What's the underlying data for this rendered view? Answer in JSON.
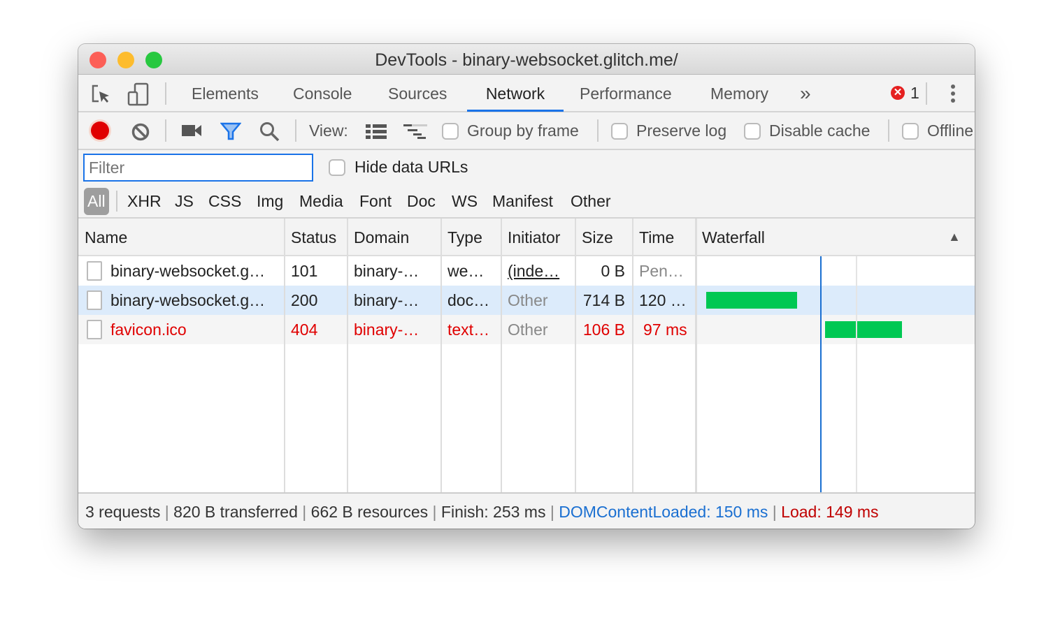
{
  "window": {
    "title": "DevTools - binary-websocket.glitch.me/"
  },
  "tabs": [
    {
      "label": "Elements"
    },
    {
      "label": "Console"
    },
    {
      "label": "Sources"
    },
    {
      "label": "Network",
      "active": true
    },
    {
      "label": "Performance"
    },
    {
      "label": "Memory"
    }
  ],
  "tabs_more": "»",
  "error_count": "1",
  "toolbar": {
    "view_label": "View:",
    "group_by_frame": "Group by frame",
    "preserve_log": "Preserve log",
    "disable_cache": "Disable cache",
    "offline": "Offline"
  },
  "filter": {
    "placeholder": "Filter",
    "value": "",
    "hide_data_urls": "Hide data URLs"
  },
  "types": [
    "All",
    "XHR",
    "JS",
    "CSS",
    "Img",
    "Media",
    "Font",
    "Doc",
    "WS",
    "Manifest",
    "Other"
  ],
  "columns": [
    "Name",
    "Status",
    "Domain",
    "Type",
    "Initiator",
    "Size",
    "Time",
    "Waterfall"
  ],
  "rows": [
    {
      "name": "binary-websocket.g…",
      "status": "101",
      "domain": "binary-…",
      "type": "we…",
      "initiator": "(inde…",
      "size": "0 B",
      "time": "Pen…",
      "error": false
    },
    {
      "name": "binary-websocket.g…",
      "status": "200",
      "domain": "binary-…",
      "type": "doc…",
      "initiator": "Other",
      "size": "714 B",
      "time": "120 …",
      "error": false,
      "selected": true
    },
    {
      "name": "favicon.ico",
      "status": "404",
      "domain": "binary-…",
      "type": "text…",
      "initiator": "Other",
      "size": "106 B",
      "time": "97 ms",
      "error": true
    }
  ],
  "summary": {
    "requests": "3 requests",
    "transferred": "820 B transferred",
    "resources": "662 B resources",
    "finish": "Finish: 253 ms",
    "dcl": "DOMContentLoaded: 150 ms",
    "load": "Load: 149 ms"
  },
  "colors": {
    "accent": "#1a73e8",
    "error": "#e00000",
    "waterfall_bar": "#00c853",
    "dcl": "#1a6fd1",
    "load": "#c00000"
  }
}
